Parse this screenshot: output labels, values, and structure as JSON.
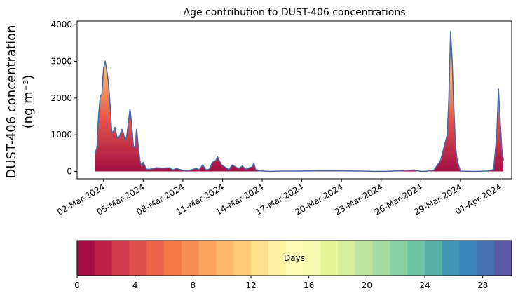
{
  "chart_data": {
    "type": "area",
    "title": "Age contribution to DUST-406 concentrations",
    "ylabel_line1": "DUST-406 concentration",
    "ylabel_line2": "(ng m⁻³)",
    "ylim": [
      -200,
      4100
    ],
    "yticks": [
      0,
      1000,
      2000,
      3000,
      4000
    ],
    "xlim": [
      "2024-02-29T00:00",
      "2024-04-01T21:00"
    ],
    "xticks": [
      {
        "date": "2024-03-02",
        "label": "02-Mar-2024"
      },
      {
        "date": "2024-03-05",
        "label": "05-Mar-2024"
      },
      {
        "date": "2024-03-08",
        "label": "08-Mar-2024"
      },
      {
        "date": "2024-03-11",
        "label": "11-Mar-2024"
      },
      {
        "date": "2024-03-14",
        "label": "14-Mar-2024"
      },
      {
        "date": "2024-03-17",
        "label": "17-Mar-2024"
      },
      {
        "date": "2024-03-20",
        "label": "20-Mar-2024"
      },
      {
        "date": "2024-03-23",
        "label": "23-Mar-2024"
      },
      {
        "date": "2024-03-26",
        "label": "26-Mar-2024"
      },
      {
        "date": "2024-03-29",
        "label": "29-Mar-2024"
      },
      {
        "date": "2024-04-01",
        "label": "01-Apr-2024"
      }
    ],
    "series": [
      {
        "color": "#4a68a8",
        "points": [
          [
            "2024-03-01T09:00",
            500
          ],
          [
            "2024-03-01T12:00",
            650
          ],
          [
            "2024-03-01T15:00",
            1500
          ],
          [
            "2024-03-01T18:00",
            2050
          ],
          [
            "2024-03-01T21:00",
            2100
          ],
          [
            "2024-03-02T00:00",
            2800
          ],
          [
            "2024-03-02T03:00",
            3000
          ],
          [
            "2024-03-02T06:00",
            2750
          ],
          [
            "2024-03-02T09:00",
            2400
          ],
          [
            "2024-03-02T12:00",
            1800
          ],
          [
            "2024-03-02T15:00",
            1050
          ],
          [
            "2024-03-02T18:00",
            1100
          ],
          [
            "2024-03-02T21:00",
            1200
          ],
          [
            "2024-03-03T00:00",
            950
          ],
          [
            "2024-03-03T03:00",
            900
          ],
          [
            "2024-03-03T06:00",
            1000
          ],
          [
            "2024-03-03T09:00",
            1150
          ],
          [
            "2024-03-03T12:00",
            1050
          ],
          [
            "2024-03-03T15:00",
            850
          ],
          [
            "2024-03-03T18:00",
            950
          ],
          [
            "2024-03-03T21:00",
            1300
          ],
          [
            "2024-03-04T00:00",
            1700
          ],
          [
            "2024-03-04T03:00",
            1300
          ],
          [
            "2024-03-04T06:00",
            700
          ],
          [
            "2024-03-04T09:00",
            650
          ],
          [
            "2024-03-04T12:00",
            1150
          ],
          [
            "2024-03-04T15:00",
            700
          ],
          [
            "2024-03-04T18:00",
            300
          ],
          [
            "2024-03-04T21:00",
            150
          ],
          [
            "2024-03-05T00:00",
            250
          ],
          [
            "2024-03-05T06:00",
            60
          ],
          [
            "2024-03-05T12:00",
            60
          ],
          [
            "2024-03-05T18:00",
            80
          ],
          [
            "2024-03-06T00:00",
            100
          ],
          [
            "2024-03-06T12:00",
            90
          ],
          [
            "2024-03-07T00:00",
            100
          ],
          [
            "2024-03-07T06:00",
            40
          ],
          [
            "2024-03-07T12:00",
            80
          ],
          [
            "2024-03-08T00:00",
            30
          ],
          [
            "2024-03-08T12:00",
            30
          ],
          [
            "2024-03-09T00:00",
            80
          ],
          [
            "2024-03-09T06:00",
            50
          ],
          [
            "2024-03-09T12:00",
            180
          ],
          [
            "2024-03-09T18:00",
            40
          ],
          [
            "2024-03-10T00:00",
            60
          ],
          [
            "2024-03-10T06:00",
            250
          ],
          [
            "2024-03-10T12:00",
            300
          ],
          [
            "2024-03-10T15:00",
            400
          ],
          [
            "2024-03-10T21:00",
            200
          ],
          [
            "2024-03-11T06:00",
            100
          ],
          [
            "2024-03-11T12:00",
            50
          ],
          [
            "2024-03-11T18:00",
            180
          ],
          [
            "2024-03-12T00:00",
            120
          ],
          [
            "2024-03-12T06:00",
            80
          ],
          [
            "2024-03-12T12:00",
            150
          ],
          [
            "2024-03-12T18:00",
            60
          ],
          [
            "2024-03-13T00:00",
            100
          ],
          [
            "2024-03-13T06:00",
            120
          ],
          [
            "2024-03-13T09:00",
            230
          ],
          [
            "2024-03-13T12:00",
            50
          ],
          [
            "2024-03-13T18:00",
            20
          ],
          [
            "2024-03-14T12:00",
            0
          ],
          [
            "2024-03-15T12:00",
            10
          ],
          [
            "2024-03-16T12:00",
            10
          ],
          [
            "2024-03-17T12:00",
            15
          ],
          [
            "2024-03-18T12:00",
            20
          ],
          [
            "2024-03-19T12:00",
            20
          ],
          [
            "2024-03-20T12:00",
            15
          ],
          [
            "2024-03-21T12:00",
            10
          ],
          [
            "2024-03-22T12:00",
            0
          ],
          [
            "2024-03-23T12:00",
            5
          ],
          [
            "2024-03-24T12:00",
            20
          ],
          [
            "2024-03-25T00:00",
            30
          ],
          [
            "2024-03-25T12:00",
            40
          ],
          [
            "2024-03-26T00:00",
            0
          ],
          [
            "2024-03-26T12:00",
            10
          ],
          [
            "2024-03-27T00:00",
            40
          ],
          [
            "2024-03-27T12:00",
            300
          ],
          [
            "2024-03-28T00:00",
            1000
          ],
          [
            "2024-03-28T03:00",
            2000
          ],
          [
            "2024-03-28T06:00",
            3820
          ],
          [
            "2024-03-28T09:00",
            3000
          ],
          [
            "2024-03-28T12:00",
            1700
          ],
          [
            "2024-03-28T15:00",
            700
          ],
          [
            "2024-03-28T18:00",
            300
          ],
          [
            "2024-03-29T00:00",
            10
          ],
          [
            "2024-03-30T00:00",
            0
          ],
          [
            "2024-03-31T00:00",
            10
          ],
          [
            "2024-03-31T12:00",
            50
          ],
          [
            "2024-03-31T15:00",
            500
          ],
          [
            "2024-03-31T18:00",
            1000
          ],
          [
            "2024-03-31T21:00",
            2250
          ],
          [
            "2024-04-01T00:00",
            1400
          ],
          [
            "2024-04-01T03:00",
            600
          ],
          [
            "2024-04-01T06:00",
            300
          ]
        ]
      }
    ],
    "colorbar": {
      "label": "Days",
      "range": [
        0,
        30
      ],
      "ticks": [
        0,
        4,
        8,
        12,
        16,
        20,
        24,
        28
      ],
      "colors": [
        "#a50f45",
        "#bc1f48",
        "#d03a4d",
        "#e0504b",
        "#ea6449",
        "#f47a48",
        "#f88f52",
        "#fba45f",
        "#fdb96d",
        "#fdca7a",
        "#fee08b",
        "#fff2a2",
        "#fdfbb5",
        "#f5fbae",
        "#e6f598",
        "#d4ee9b",
        "#bde5a0",
        "#a5dca4",
        "#8ad0a4",
        "#70c5a4",
        "#57b1a9",
        "#3f96b7",
        "#3984bc",
        "#4670b0",
        "#5a5aa5"
      ]
    }
  }
}
